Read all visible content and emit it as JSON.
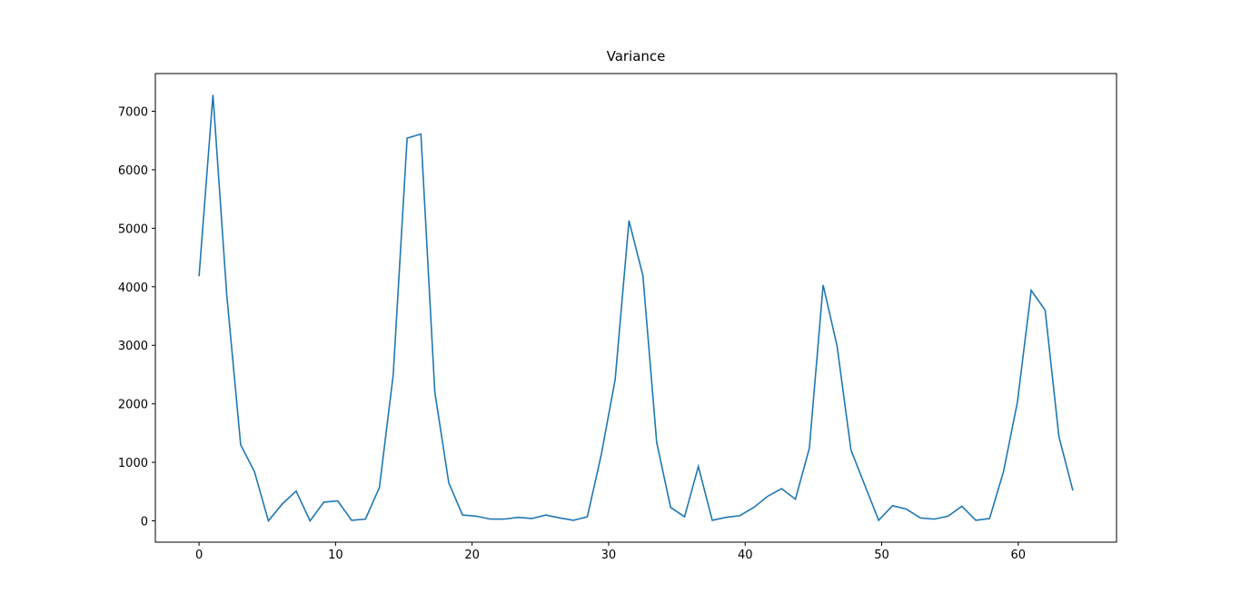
{
  "chart_data": {
    "type": "line",
    "title": "Variance",
    "x": [
      0,
      1.02,
      2.03,
      3.05,
      4.06,
      5.08,
      6.1,
      7.11,
      8.13,
      9.14,
      10.16,
      11.17,
      12.19,
      13.21,
      14.22,
      15.24,
      16.25,
      17.27,
      18.29,
      19.3,
      20.32,
      21.33,
      22.35,
      23.37,
      24.38,
      25.4,
      26.41,
      27.43,
      28.44,
      29.46,
      30.48,
      31.49,
      32.51,
      33.52,
      34.54,
      35.56,
      36.57,
      37.59,
      38.6,
      39.62,
      40.63,
      41.65,
      42.67,
      43.68,
      44.7,
      45.71,
      46.73,
      47.75,
      48.76,
      49.78,
      50.79,
      51.81,
      52.83,
      53.84,
      54.86,
      55.87,
      56.89,
      57.9,
      58.92,
      59.94,
      60.95,
      61.97,
      62.98,
      64
    ],
    "series": [
      {
        "name": "Variance",
        "color": "#1f77b4",
        "values": [
          4180,
          7280,
          3860,
          1300,
          840,
          0,
          290,
          510,
          0,
          320,
          340,
          10,
          30,
          570,
          2490,
          6540,
          6610,
          2200,
          650,
          100,
          80,
          30,
          30,
          60,
          40,
          100,
          50,
          10,
          70,
          1130,
          2420,
          5130,
          4190,
          1340,
          230,
          70,
          930,
          10,
          60,
          90,
          230,
          420,
          550,
          370,
          1240,
          4030,
          2990,
          1210,
          610,
          10,
          260,
          200,
          50,
          30,
          80,
          250,
          10,
          40,
          840,
          2030,
          3940,
          3600,
          1440,
          520
        ]
      }
    ],
    "xlim": [
      -3.2,
      67.2
    ],
    "xticks": [
      0,
      10,
      20,
      30,
      40,
      50,
      60
    ],
    "ylim": [
      -364,
      7644
    ],
    "yticks": [
      0,
      1000,
      2000,
      3000,
      4000,
      5000,
      6000,
      7000
    ]
  }
}
